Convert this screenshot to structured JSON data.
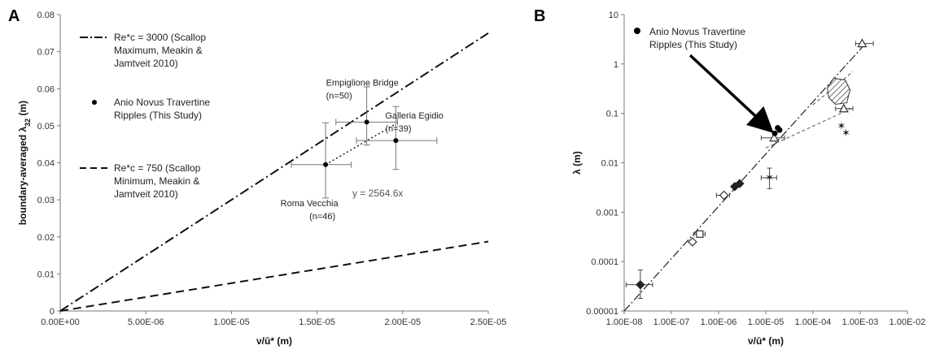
{
  "chart_data": [
    {
      "panel": "A",
      "type": "line",
      "xlabel": "ν/ū* (m)",
      "ylabel": "boundary-averaged λ32 (m)",
      "xlim": [
        0,
        2.5e-05
      ],
      "ylim": [
        0,
        0.08
      ],
      "x_ticks": [
        "0.00E+00",
        "5.00E-06",
        "1.00E-05",
        "1.50E-05",
        "2.00E-05",
        "2.50E-05"
      ],
      "y_ticks": [
        "0",
        "0.01",
        "0.02",
        "0.03",
        "0.04",
        "0.05",
        "0.06",
        "0.07",
        "0.08"
      ],
      "grid": false,
      "legend_position": "top-left",
      "legend": [
        {
          "text": "Re*c = 3000 (Scallop",
          "text2": "Maximum, Meakin &",
          "text3": "Jamtveit 2010)",
          "style": "dash-dot"
        },
        {
          "text": "Anio Novus Travertine",
          "text2": "Ripples (This Study)",
          "style": "marker"
        },
        {
          "text": "Re*c = 750 (Scallop",
          "text2": "Minimum, Meakin &",
          "text3": "Jamtveit 2010)",
          "style": "dashed"
        }
      ],
      "series": [
        {
          "name": "Re*c = 3000 (Scallop Maximum, Meakin & Jamtveit 2010)",
          "style": "dash-dot",
          "x": [
            0,
            2.5e-05
          ],
          "y": [
            0,
            0.075
          ]
        },
        {
          "name": "Re*c = 750 (Scallop Minimum, Meakin & Jamtveit 2010)",
          "style": "dashed",
          "x": [
            0,
            2.5e-05
          ],
          "y": [
            0,
            0.01875
          ]
        },
        {
          "name": "Anio Novus Travertine Ripples (This Study)",
          "style": "marker",
          "points": [
            {
              "x": 1.55e-05,
              "y": 0.0395,
              "xerr": [
                1.35e-05,
                1.7e-05
              ],
              "yerr": [
                0.0305,
                0.0508
              ]
            },
            {
              "x": 1.79e-05,
              "y": 0.051,
              "xerr": [
                1.61e-05,
                1.97e-05
              ],
              "yerr": [
                0.0448,
                0.0605
              ]
            },
            {
              "x": 1.96e-05,
              "y": 0.046,
              "xerr": [
                1.73e-05,
                2.2e-05
              ],
              "yerr": [
                0.0382,
                0.0552
              ]
            }
          ]
        },
        {
          "style": "dotted",
          "x": [
            1.55e-05,
            1.96e-05
          ],
          "y": [
            0.0395,
            0.0505
          ]
        }
      ],
      "point_labels": [
        {
          "line1": "Roma Vecchia",
          "line2": "(n=46)"
        },
        {
          "line1": "Empiglione Bridge",
          "line2": "(n=50)"
        },
        {
          "line1": "Galleria Egidio",
          "line2": "(n=39)"
        }
      ],
      "equation": "y = 2564.6x"
    },
    {
      "panel": "B",
      "type": "scatter",
      "xlabel": "ν/ū* (m)",
      "ylabel": "λ (m)",
      "xscale": "log",
      "yscale": "log",
      "xlim": [
        1e-08,
        0.01
      ],
      "ylim": [
        1e-05,
        10
      ],
      "x_ticks": [
        "1.00E-08",
        "1.00E-07",
        "1.00E-06",
        "1.00E-05",
        "1.00E-04",
        "1.00E-03",
        "1.00E-02"
      ],
      "y_ticks": [
        "0.00001",
        "0.0001",
        "0.001",
        "0.01",
        "0.1",
        "1",
        "10"
      ],
      "grid": false,
      "legend_position": "top-left",
      "legend": [
        {
          "text": "Anio Novus Travertine",
          "text2": "Ripples (This Study)",
          "style": "marker"
        }
      ],
      "trend_line": {
        "style": "dash-dot",
        "x": [
          1e-08,
          0.0013
        ],
        "y": [
          1e-05,
          2.6
        ]
      },
      "data_points": [
        {
          "x": 2.2e-08,
          "y": 3.4e-05,
          "marker": "filled-diamond",
          "xerr": [
            1.1e-08,
            4e-08
          ],
          "yerr": [
            1.8e-05,
            6.8e-05
          ]
        },
        {
          "x": 2.8e-07,
          "y": 0.00025,
          "marker": "open-diamond"
        },
        {
          "x": 4e-07,
          "y": 0.00036,
          "marker": "open-square",
          "xerr": [
            3e-07,
            5.2e-07
          ]
        },
        {
          "x": 1.3e-06,
          "y": 0.0022,
          "marker": "open-diamond",
          "xerr": [
            9e-07,
            1.7e-06
          ]
        },
        {
          "x": 2.2e-06,
          "y": 0.0033,
          "marker": "filled-diamond"
        },
        {
          "x": 2.8e-06,
          "y": 0.0038,
          "marker": "filled-diamond"
        },
        {
          "x": 1.2e-05,
          "y": 0.005,
          "marker": "star",
          "xerr": [
            8e-06,
            1.7e-05
          ],
          "yerr": [
            0.003,
            0.0078
          ]
        },
        {
          "x": 1.5e-05,
          "y": 0.032,
          "marker": "open-triangle",
          "xerr": [
            8e-06,
            2.5e-05
          ]
        },
        {
          "x": 1.55e-05,
          "y": 0.0395,
          "marker": "filled-circle"
        },
        {
          "x": 1.79e-05,
          "y": 0.051,
          "marker": "filled-circle"
        },
        {
          "x": 1.96e-05,
          "y": 0.046,
          "marker": "filled-circle"
        },
        {
          "x": 0.0004,
          "y": 0.055,
          "marker": "star"
        },
        {
          "x": 0.0005,
          "y": 0.04,
          "marker": "star"
        },
        {
          "x": 0.00035,
          "y": 0.28,
          "marker": "hatched-region"
        },
        {
          "x": 0.00045,
          "y": 0.125,
          "marker": "open-triangle",
          "xerr": [
            0.0003,
            0.0007
          ]
        },
        {
          "x": 0.0011,
          "y": 2.6,
          "marker": "open-triangle",
          "xerr": [
            0.0008,
            0.0019
          ]
        }
      ],
      "connector_lines": [
        {
          "x": [
            1e-05,
            0.0007
          ],
          "y": [
            0.02,
            0.13
          ],
          "style": "dashed"
        },
        {
          "x": [
            0.0001,
            0.0007
          ],
          "y": [
            0.15,
            0.7
          ],
          "style": "dashed"
        }
      ],
      "arrow": {
        "from_x": 2.5e-07,
        "from_y": 1.5,
        "to_x": 1.2e-05,
        "to_y": 0.048
      }
    }
  ]
}
